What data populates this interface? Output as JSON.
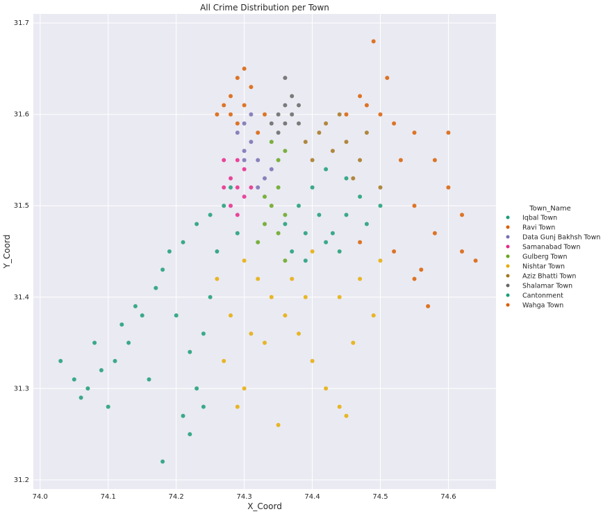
{
  "chart_data": {
    "type": "scatter",
    "title": "All Crime Distribution per Town",
    "xlabel": "X_Coord",
    "ylabel": "Y_Coord",
    "xlim": [
      73.99,
      74.67
    ],
    "ylim": [
      31.19,
      31.71
    ],
    "xticks": [
      74.0,
      74.1,
      74.2,
      74.3,
      74.4,
      74.5,
      74.6
    ],
    "xtick_labels": [
      "74.0",
      "74.1",
      "74.2",
      "74.3",
      "74.4",
      "74.5",
      "74.6"
    ],
    "yticks": [
      31.2,
      31.3,
      31.4,
      31.5,
      31.6,
      31.7
    ],
    "ytick_labels": [
      "31.2",
      "31.3",
      "31.4",
      "31.5",
      "31.6",
      "31.7"
    ],
    "grid": true,
    "legend": {
      "title": "Town_Name",
      "placement": "right",
      "entries": [
        {
          "label": "Iqbal Town",
          "color": "#1b9e77"
        },
        {
          "label": "Ravi Town",
          "color": "#d95f02"
        },
        {
          "label": "Data Gunj Bakhsh Town",
          "color": "#7570b3"
        },
        {
          "label": "Samanabad Town",
          "color": "#e7298a"
        },
        {
          "label": "Gulberg Town",
          "color": "#66a61e"
        },
        {
          "label": "Nishtar Town",
          "color": "#e6ab02"
        },
        {
          "label": "Aziz Bhatti Town",
          "color": "#a6761d"
        },
        {
          "label": "Shalamar Town",
          "color": "#666666"
        },
        {
          "label": "Cantonment",
          "color": "#1b9e77"
        },
        {
          "label": "Wahga Town",
          "color": "#d95f02"
        }
      ]
    },
    "series": [
      {
        "name": "Iqbal Town",
        "color": "#1b9e77",
        "points": [
          [
            74.03,
            31.33
          ],
          [
            74.05,
            31.31
          ],
          [
            74.07,
            31.3
          ],
          [
            74.09,
            31.32
          ],
          [
            74.11,
            31.33
          ],
          [
            74.13,
            31.35
          ],
          [
            74.15,
            31.38
          ],
          [
            74.17,
            31.41
          ],
          [
            74.18,
            31.43
          ],
          [
            74.19,
            31.45
          ],
          [
            74.21,
            31.46
          ],
          [
            74.23,
            31.48
          ],
          [
            74.25,
            31.49
          ],
          [
            74.27,
            31.5
          ],
          [
            74.28,
            31.52
          ],
          [
            74.22,
            31.25
          ],
          [
            74.21,
            31.27
          ],
          [
            74.23,
            31.3
          ],
          [
            74.22,
            31.34
          ],
          [
            74.24,
            31.36
          ],
          [
            74.2,
            31.38
          ],
          [
            74.14,
            31.39
          ],
          [
            74.12,
            31.37
          ],
          [
            74.1,
            31.28
          ],
          [
            74.08,
            31.35
          ],
          [
            74.16,
            31.31
          ],
          [
            74.26,
            31.45
          ],
          [
            74.29,
            31.47
          ],
          [
            74.25,
            31.4
          ],
          [
            74.18,
            31.22
          ],
          [
            74.24,
            31.28
          ],
          [
            74.06,
            31.29
          ]
        ]
      },
      {
        "name": "Ravi Town",
        "color": "#d95f02",
        "points": [
          [
            74.28,
            31.62
          ],
          [
            74.29,
            31.64
          ],
          [
            74.3,
            31.65
          ],
          [
            74.31,
            31.63
          ],
          [
            74.27,
            31.61
          ],
          [
            74.26,
            31.6
          ],
          [
            74.3,
            31.61
          ],
          [
            74.33,
            31.6
          ],
          [
            74.29,
            31.59
          ],
          [
            74.28,
            31.6
          ],
          [
            74.32,
            31.58
          ]
        ]
      },
      {
        "name": "Data Gunj Bakhsh Town",
        "color": "#7570b3",
        "points": [
          [
            74.3,
            31.59
          ],
          [
            74.31,
            31.57
          ],
          [
            74.32,
            31.55
          ],
          [
            74.33,
            31.53
          ],
          [
            74.3,
            31.56
          ],
          [
            74.29,
            31.58
          ],
          [
            74.31,
            31.6
          ],
          [
            74.34,
            31.54
          ],
          [
            74.32,
            31.52
          ],
          [
            74.3,
            31.55
          ]
        ]
      },
      {
        "name": "Samanabad Town",
        "color": "#e7298a",
        "points": [
          [
            74.27,
            31.55
          ],
          [
            74.28,
            31.53
          ],
          [
            74.29,
            31.52
          ],
          [
            74.3,
            31.51
          ],
          [
            74.28,
            31.5
          ],
          [
            74.29,
            31.49
          ],
          [
            74.31,
            31.52
          ],
          [
            74.3,
            31.54
          ],
          [
            74.27,
            31.52
          ],
          [
            74.29,
            31.55
          ]
        ]
      },
      {
        "name": "Gulberg Town",
        "color": "#66a61e",
        "points": [
          [
            74.34,
            31.57
          ],
          [
            74.35,
            31.55
          ],
          [
            74.35,
            31.52
          ],
          [
            74.34,
            31.5
          ],
          [
            74.33,
            31.48
          ],
          [
            74.32,
            31.46
          ],
          [
            74.35,
            31.47
          ],
          [
            74.36,
            31.49
          ],
          [
            74.36,
            31.56
          ],
          [
            74.33,
            31.51
          ],
          [
            74.36,
            31.44
          ]
        ]
      },
      {
        "name": "Nishtar Town",
        "color": "#e6ab02",
        "points": [
          [
            74.3,
            31.44
          ],
          [
            74.32,
            31.42
          ],
          [
            74.34,
            31.4
          ],
          [
            74.36,
            31.38
          ],
          [
            74.38,
            31.36
          ],
          [
            74.4,
            31.33
          ],
          [
            74.42,
            31.3
          ],
          [
            74.44,
            31.28
          ],
          [
            74.45,
            31.27
          ],
          [
            74.33,
            31.35
          ],
          [
            74.28,
            31.38
          ],
          [
            74.26,
            31.42
          ],
          [
            74.27,
            31.33
          ],
          [
            74.3,
            31.3
          ],
          [
            74.35,
            31.26
          ],
          [
            74.44,
            31.4
          ],
          [
            74.47,
            31.42
          ],
          [
            74.49,
            31.38
          ],
          [
            74.4,
            31.45
          ],
          [
            74.37,
            31.42
          ],
          [
            74.29,
            31.28
          ],
          [
            74.31,
            31.36
          ],
          [
            74.39,
            31.4
          ],
          [
            74.46,
            31.35
          ],
          [
            74.5,
            31.44
          ]
        ]
      },
      {
        "name": "Aziz Bhatti Town",
        "color": "#a6761d",
        "points": [
          [
            74.39,
            31.57
          ],
          [
            74.41,
            31.58
          ],
          [
            74.43,
            31.56
          ],
          [
            74.4,
            31.55
          ],
          [
            74.42,
            31.59
          ],
          [
            74.45,
            31.57
          ],
          [
            74.47,
            31.55
          ],
          [
            74.48,
            31.58
          ],
          [
            74.44,
            31.6
          ],
          [
            74.46,
            31.53
          ],
          [
            74.5,
            31.52
          ]
        ]
      },
      {
        "name": "Shalamar Town",
        "color": "#666666",
        "points": [
          [
            74.34,
            31.59
          ],
          [
            74.35,
            31.6
          ],
          [
            74.36,
            31.61
          ],
          [
            74.37,
            31.6
          ],
          [
            74.38,
            31.59
          ],
          [
            74.35,
            31.58
          ],
          [
            74.36,
            31.59
          ],
          [
            74.37,
            31.62
          ],
          [
            74.38,
            31.61
          ],
          [
            74.36,
            31.64
          ]
        ]
      },
      {
        "name": "Cantonment",
        "color": "#1b9e77",
        "points": [
          [
            74.37,
            31.45
          ],
          [
            74.39,
            31.47
          ],
          [
            74.41,
            31.49
          ],
          [
            74.43,
            31.47
          ],
          [
            74.45,
            31.49
          ],
          [
            74.47,
            31.51
          ],
          [
            74.4,
            31.52
          ],
          [
            74.42,
            31.54
          ],
          [
            74.38,
            31.5
          ],
          [
            74.44,
            31.45
          ],
          [
            74.48,
            31.48
          ],
          [
            74.36,
            31.48
          ],
          [
            74.45,
            31.53
          ],
          [
            74.5,
            31.5
          ],
          [
            74.39,
            31.44
          ],
          [
            74.42,
            31.46
          ]
        ]
      },
      {
        "name": "Wahga Town",
        "color": "#d95f02",
        "points": [
          [
            74.45,
            31.6
          ],
          [
            74.48,
            31.61
          ],
          [
            74.5,
            31.6
          ],
          [
            74.52,
            31.59
          ],
          [
            74.55,
            31.58
          ],
          [
            74.58,
            31.55
          ],
          [
            74.6,
            31.52
          ],
          [
            74.62,
            31.49
          ],
          [
            74.64,
            31.44
          ],
          [
            74.55,
            31.5
          ],
          [
            74.58,
            31.47
          ],
          [
            74.52,
            31.45
          ],
          [
            74.55,
            31.42
          ],
          [
            74.57,
            31.39
          ],
          [
            74.49,
            31.68
          ],
          [
            74.47,
            31.62
          ],
          [
            74.53,
            31.55
          ],
          [
            74.6,
            31.58
          ],
          [
            74.51,
            31.64
          ],
          [
            74.56,
            31.43
          ],
          [
            74.62,
            31.45
          ],
          [
            74.47,
            31.46
          ]
        ]
      }
    ]
  }
}
